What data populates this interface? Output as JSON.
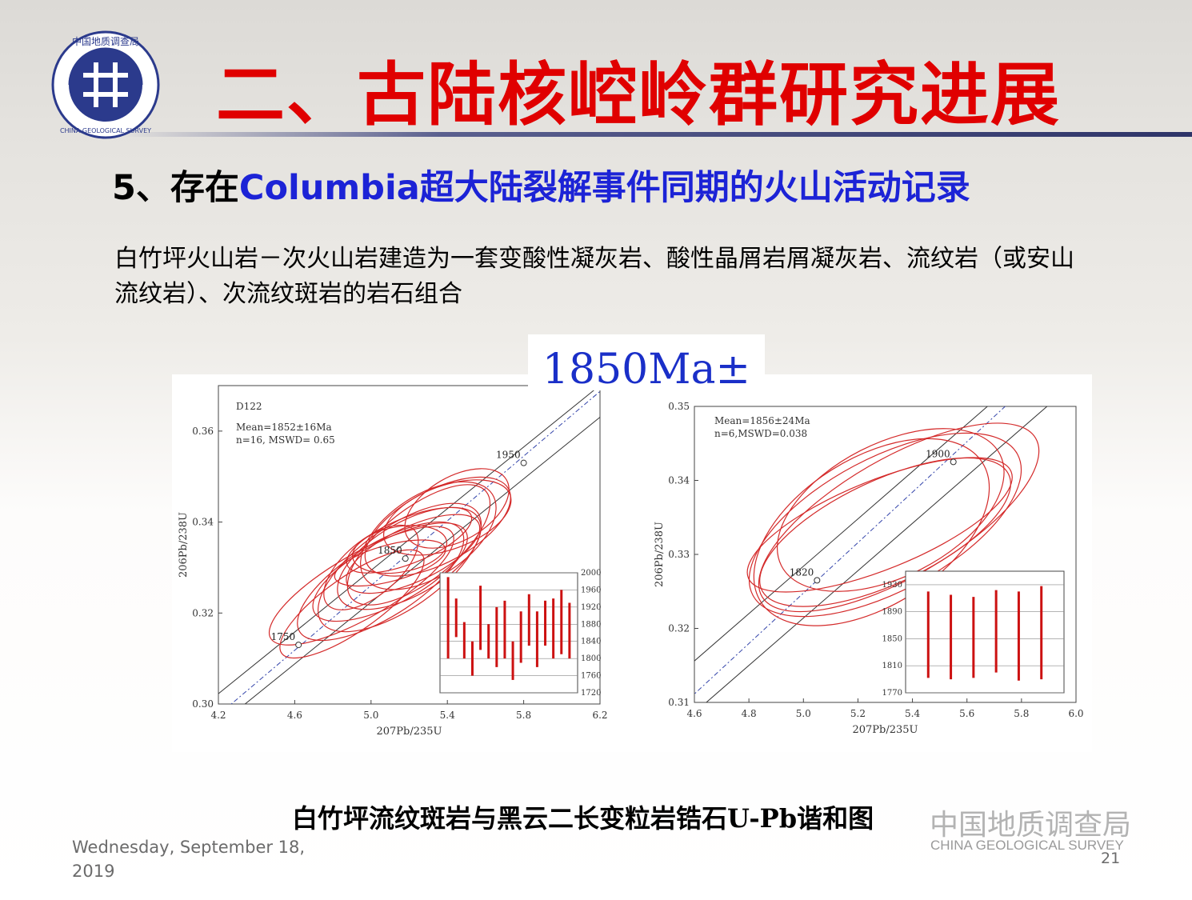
{
  "header": {
    "title": "二、古陆核崆岭群研究进展",
    "logo": {
      "name": "china-geological-survey-logo",
      "ring_text_top": "中国地质调查局",
      "ring_text_bottom": "CHINA GEOLOGICAL SURVEY"
    }
  },
  "subtitle": {
    "prefix": "5、存在",
    "highlight": "Columbia超大陆裂解事件同期的火山活动记录"
  },
  "description": "白竹坪火山岩－次火山岩建造为一套变酸性凝灰岩、酸性晶屑岩屑凝灰岩、流纹岩（或安山流纹岩）、次流纹斑岩的岩石组合",
  "age_label": "1850Ma±",
  "caption": "白竹坪流纹斑岩与黑云二长变粒岩锆石U-Pb谐和图",
  "footer": {
    "date": "Wednesday, September 18, 2019",
    "org_cn": "中国地质调查局",
    "org_en": "CHINA GEOLOGICAL SURVEY",
    "page": "21"
  },
  "colors": {
    "title": "#e00000",
    "highlight": "#1c23d6",
    "ellipse": "#d42a2a",
    "bar": "#cc1111"
  },
  "chart_data": [
    {
      "type": "scatter",
      "title": "",
      "sample": "D122",
      "xlabel": "207Pb/235U",
      "ylabel": "206Pb/238U",
      "xlim": [
        4.2,
        6.2
      ],
      "ylim": [
        0.3,
        0.37
      ],
      "xticks": [
        4.2,
        4.6,
        5.0,
        5.4,
        5.8,
        6.2
      ],
      "yticks": [
        0.3,
        0.32,
        0.34,
        0.36
      ],
      "stats": [
        "Mean=1852±16Ma",
        "n=16, MSWD= 0.65"
      ],
      "concordia_ages": [
        {
          "label": "1750",
          "x": 4.62,
          "y": 0.313
        },
        {
          "label": "1850",
          "x": 5.18,
          "y": 0.332
        },
        {
          "label": "1950",
          "x": 5.8,
          "y": 0.353
        }
      ],
      "ellipses": [
        {
          "cx": 4.95,
          "cy": 0.326,
          "rx": 0.55,
          "ry": 0.007,
          "rot": 30
        },
        {
          "cx": 5.05,
          "cy": 0.327,
          "rx": 0.5,
          "ry": 0.008,
          "rot": 32
        },
        {
          "cx": 5.1,
          "cy": 0.329,
          "rx": 0.45,
          "ry": 0.007,
          "rot": 28
        },
        {
          "cx": 5.15,
          "cy": 0.33,
          "rx": 0.5,
          "ry": 0.009,
          "rot": 35
        },
        {
          "cx": 5.2,
          "cy": 0.332,
          "rx": 0.42,
          "ry": 0.008,
          "rot": 30
        },
        {
          "cx": 5.22,
          "cy": 0.333,
          "rx": 0.38,
          "ry": 0.006,
          "rot": 25
        },
        {
          "cx": 5.25,
          "cy": 0.335,
          "rx": 0.45,
          "ry": 0.008,
          "rot": 38
        },
        {
          "cx": 5.3,
          "cy": 0.337,
          "rx": 0.4,
          "ry": 0.009,
          "rot": 33
        },
        {
          "cx": 5.35,
          "cy": 0.339,
          "rx": 0.42,
          "ry": 0.008,
          "rot": 28
        },
        {
          "cx": 5.4,
          "cy": 0.341,
          "rx": 0.35,
          "ry": 0.007,
          "rot": 20
        },
        {
          "cx": 5.1,
          "cy": 0.331,
          "rx": 0.3,
          "ry": 0.004,
          "rot": 15
        },
        {
          "cx": 5.0,
          "cy": 0.33,
          "rx": 0.3,
          "ry": 0.006,
          "rot": 40
        },
        {
          "cx": 5.2,
          "cy": 0.336,
          "rx": 0.35,
          "ry": 0.005,
          "rot": 22
        },
        {
          "cx": 5.45,
          "cy": 0.343,
          "rx": 0.3,
          "ry": 0.007,
          "rot": 30
        },
        {
          "cx": 4.9,
          "cy": 0.322,
          "rx": 0.45,
          "ry": 0.006,
          "rot": 35
        },
        {
          "cx": 5.15,
          "cy": 0.334,
          "rx": 0.25,
          "ry": 0.005,
          "rot": 10
        }
      ],
      "inset": {
        "ylim": [
          1720,
          2000
        ],
        "yticks": [
          1720,
          1760,
          1800,
          1840,
          1880,
          1920,
          1960,
          2000
        ],
        "bars": [
          {
            "low": 1800,
            "high": 1990
          },
          {
            "low": 1850,
            "high": 1940
          },
          {
            "low": 1800,
            "high": 1885
          },
          {
            "low": 1760,
            "high": 1840
          },
          {
            "low": 1820,
            "high": 1970
          },
          {
            "low": 1800,
            "high": 1880
          },
          {
            "low": 1780,
            "high": 1920
          },
          {
            "low": 1800,
            "high": 1935
          },
          {
            "low": 1750,
            "high": 1840
          },
          {
            "low": 1790,
            "high": 1910
          },
          {
            "low": 1830,
            "high": 1950
          },
          {
            "low": 1780,
            "high": 1910
          },
          {
            "low": 1830,
            "high": 1935
          },
          {
            "low": 1800,
            "high": 1940
          },
          {
            "low": 1810,
            "high": 1960
          },
          {
            "low": 1800,
            "high": 1930
          }
        ]
      }
    },
    {
      "type": "scatter",
      "title": "",
      "xlabel": "207Pb/235U",
      "ylabel": "206Pb/238U",
      "xlim": [
        4.6,
        6.0
      ],
      "ylim": [
        0.31,
        0.35
      ],
      "xticks": [
        4.6,
        4.8,
        5.0,
        5.2,
        5.4,
        5.6,
        5.8,
        6.0
      ],
      "yticks": [
        0.31,
        0.32,
        0.33,
        0.34,
        0.35
      ],
      "stats": [
        "Mean=1856±24Ma",
        "n=6,MSWD=0.038"
      ],
      "concordia_ages": [
        {
          "label": "1820",
          "x": 5.05,
          "y": 0.3265
        },
        {
          "label": "1900",
          "x": 5.55,
          "y": 0.3425
        }
      ],
      "ellipses": [
        {
          "cx": 5.3,
          "cy": 0.334,
          "rx": 0.55,
          "ry": 0.009,
          "rot": 28
        },
        {
          "cx": 5.35,
          "cy": 0.335,
          "rx": 0.58,
          "ry": 0.008,
          "rot": 30
        },
        {
          "cx": 5.3,
          "cy": 0.333,
          "rx": 0.5,
          "ry": 0.007,
          "rot": 25
        },
        {
          "cx": 5.25,
          "cy": 0.333,
          "rx": 0.48,
          "ry": 0.01,
          "rot": 32
        },
        {
          "cx": 5.28,
          "cy": 0.334,
          "rx": 0.52,
          "ry": 0.006,
          "rot": 22
        },
        {
          "cx": 5.32,
          "cy": 0.336,
          "rx": 0.45,
          "ry": 0.009,
          "rot": 27
        }
      ],
      "inset": {
        "ylim": [
          1770,
          1950
        ],
        "yticks": [
          1770,
          1810,
          1850,
          1890,
          1930
        ],
        "bars": [
          {
            "low": 1792,
            "high": 1920
          },
          {
            "low": 1790,
            "high": 1915
          },
          {
            "low": 1792,
            "high": 1912
          },
          {
            "low": 1800,
            "high": 1922
          },
          {
            "low": 1788,
            "high": 1920
          },
          {
            "low": 1790,
            "high": 1928
          }
        ]
      }
    }
  ]
}
